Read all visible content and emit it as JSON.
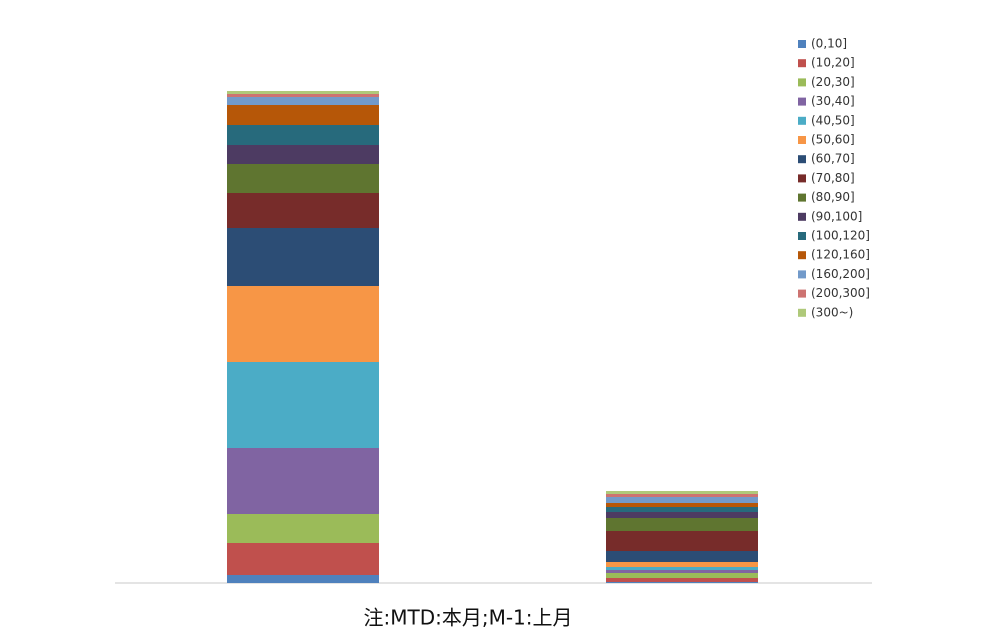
{
  "chart_data": {
    "type": "stacked-bar",
    "caption": "注:MTD:本月;M-1:上月",
    "categories": [
      null,
      null
    ],
    "ylim": [
      0,
      500
    ],
    "series": [
      {
        "name": "(0,10]",
        "color": "#4F81BD",
        "values": [
          8,
          1
        ]
      },
      {
        "name": "(10,20]",
        "color": "#C0504D",
        "values": [
          32,
          4
        ]
      },
      {
        "name": "(20,30]",
        "color": "#9BBB59",
        "values": [
          29,
          5
        ]
      },
      {
        "name": "(30,40]",
        "color": "#8064A2",
        "values": [
          66,
          3
        ]
      },
      {
        "name": "(40,50]",
        "color": "#4BACC6",
        "values": [
          86,
          3
        ]
      },
      {
        "name": "(50,60]",
        "color": "#F79646",
        "values": [
          76,
          5
        ]
      },
      {
        "name": "(60,70]",
        "color": "#2C4D75",
        "values": [
          58,
          11
        ]
      },
      {
        "name": "(70,80]",
        "color": "#772C2A",
        "values": [
          35,
          20
        ]
      },
      {
        "name": "(80,90]",
        "color": "#5F7530",
        "values": [
          29,
          13
        ]
      },
      {
        "name": "(90,100]",
        "color": "#4D3B62",
        "values": [
          19,
          6
        ]
      },
      {
        "name": "(100,120]",
        "color": "#276A7C",
        "values": [
          20,
          5
        ]
      },
      {
        "name": "(120,160]",
        "color": "#B65708",
        "values": [
          20,
          4
        ]
      },
      {
        "name": "(160,200]",
        "color": "#729ACA",
        "values": [
          8,
          6
        ]
      },
      {
        "name": "(200,300]",
        "color": "#CD7371",
        "values": [
          3,
          3
        ]
      },
      {
        "name": "(300~)",
        "color": "#AFC97A",
        "values": [
          3,
          3
        ]
      }
    ]
  }
}
